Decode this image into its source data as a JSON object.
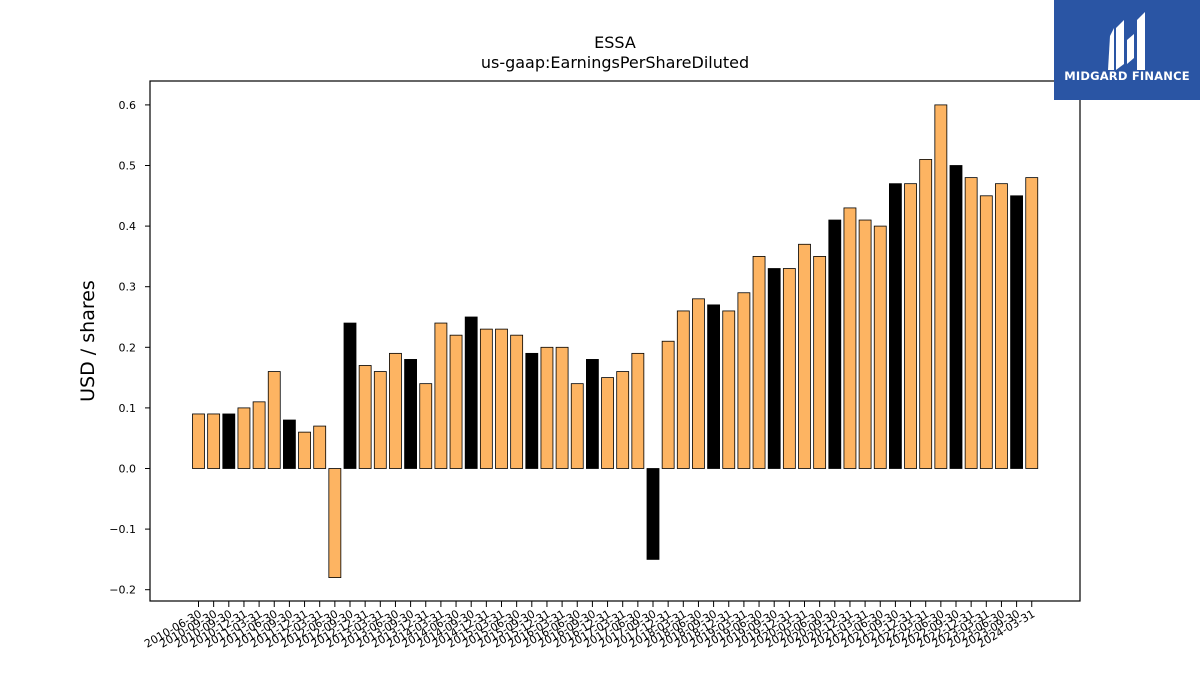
{
  "brand": {
    "name": "MIDGARD FINANCE",
    "colors": {
      "background": "#2a55a4",
      "text": "#ffffff"
    }
  },
  "colors": {
    "annual": "#000000",
    "quarterly": "#fdb462",
    "bar_edge": "#000000"
  },
  "chart_data": {
    "type": "bar",
    "title": "ESSA",
    "subtitle": "us-gaap:EarningsPerShareDiluted",
    "xlabel": "",
    "ylabel": "USD / shares",
    "ylim": [
      -0.22,
      0.64
    ],
    "yticks": [
      -0.2,
      -0.1,
      0.0,
      0.1,
      0.2,
      0.3,
      0.4,
      0.5,
      0.6
    ],
    "ytick_labels": [
      "−0.2",
      "−0.1",
      "0.0",
      "0.1",
      "0.2",
      "0.3",
      "0.4",
      "0.5",
      "0.6"
    ],
    "grid": false,
    "legend": "none",
    "categories": [
      "2010-06-30",
      "2010-09-30",
      "2010-09-30",
      "2010-12-31",
      "2011-03-31",
      "2011-06-30",
      "2011-09-30",
      "2011-12-31",
      "2012-03-31",
      "2012-06-30",
      "2012-09-30",
      "2012-12-31",
      "2013-03-31",
      "2013-06-30",
      "2013-09-30",
      "2013-12-31",
      "2014-03-31",
      "2014-06-30",
      "2014-09-30",
      "2014-12-31",
      "2015-03-31",
      "2015-06-30",
      "2015-09-30",
      "2015-12-31",
      "2016-03-31",
      "2016-06-30",
      "2016-09-30",
      "2016-12-31",
      "2017-03-31",
      "2017-06-30",
      "2017-09-30",
      "2017-12-31",
      "2018-03-31",
      "2018-06-30",
      "2018-09-30",
      "2018-12-31",
      "2019-03-31",
      "2019-06-30",
      "2019-09-30",
      "2019-12-31",
      "2020-03-31",
      "2020-06-30",
      "2020-09-30",
      "2020-12-31",
      "2021-03-31",
      "2021-06-30",
      "2021-09-30",
      "2021-12-31",
      "2022-03-31",
      "2022-06-30",
      "2022-09-30",
      "2022-12-31",
      "2023-03-31",
      "2023-06-30",
      "2023-09-30",
      "2024-03-31"
    ],
    "values": [
      0.09,
      0.09,
      0.09,
      0.1,
      0.11,
      0.16,
      0.08,
      0.06,
      0.07,
      -0.18,
      0.24,
      0.17,
      0.16,
      0.19,
      0.18,
      0.14,
      0.24,
      0.22,
      0.25,
      0.23,
      0.23,
      0.22,
      0.19,
      0.2,
      0.2,
      0.14,
      0.18,
      0.15,
      0.16,
      0.19,
      -0.15,
      0.21,
      0.26,
      0.28,
      0.27,
      0.26,
      0.29,
      0.35,
      0.33,
      0.33,
      0.37,
      0.35,
      0.41,
      0.43,
      0.41,
      0.4,
      0.47,
      0.47,
      0.51,
      0.6,
      0.5,
      0.48,
      0.45,
      0.47,
      0.45,
      0.48
    ],
    "is_annual": [
      0,
      0,
      1,
      0,
      0,
      0,
      1,
      0,
      0,
      0,
      1,
      0,
      0,
      0,
      1,
      0,
      0,
      0,
      1,
      0,
      0,
      0,
      1,
      0,
      0,
      0,
      1,
      0,
      0,
      0,
      1,
      0,
      0,
      0,
      1,
      0,
      0,
      0,
      1,
      0,
      0,
      0,
      1,
      0,
      0,
      0,
      1,
      0,
      0,
      0,
      1,
      0,
      0,
      0,
      1,
      0
    ]
  }
}
